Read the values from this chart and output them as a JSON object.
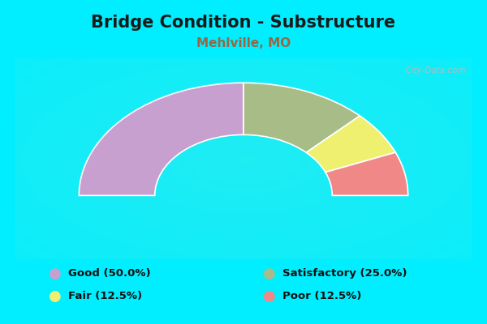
{
  "title": "Bridge Condition - Substructure",
  "subtitle": "Mehlville, MO",
  "title_fontsize": 15,
  "subtitle_fontsize": 11,
  "title_color": "#1a1a1a",
  "subtitle_color": "#996644",
  "background_color": "#00eeff",
  "chart_bg_color": "#f0f8ee",
  "segments": [
    {
      "label": "Good (50.0%)",
      "pct": 50.0,
      "color": "#c8a0d0"
    },
    {
      "label": "Satisfactory (25.0%)",
      "pct": 25.0,
      "color": "#a8bc88"
    },
    {
      "label": "Fair (12.5%)",
      "pct": 12.5,
      "color": "#f0f070"
    },
    {
      "label": "Poor (12.5%)",
      "pct": 12.5,
      "color": "#f08888"
    }
  ],
  "legend_colors": [
    "#c8a0d0",
    "#a8bc88",
    "#f0f070",
    "#f08888"
  ],
  "legend_labels": [
    "Good (50.0%)",
    "Satisfactory (25.0%)",
    "Fair (12.5%)",
    "Poor (12.5%)"
  ],
  "watermark": "City-Data.com",
  "outer_r": 1.15,
  "inner_r": 0.62
}
